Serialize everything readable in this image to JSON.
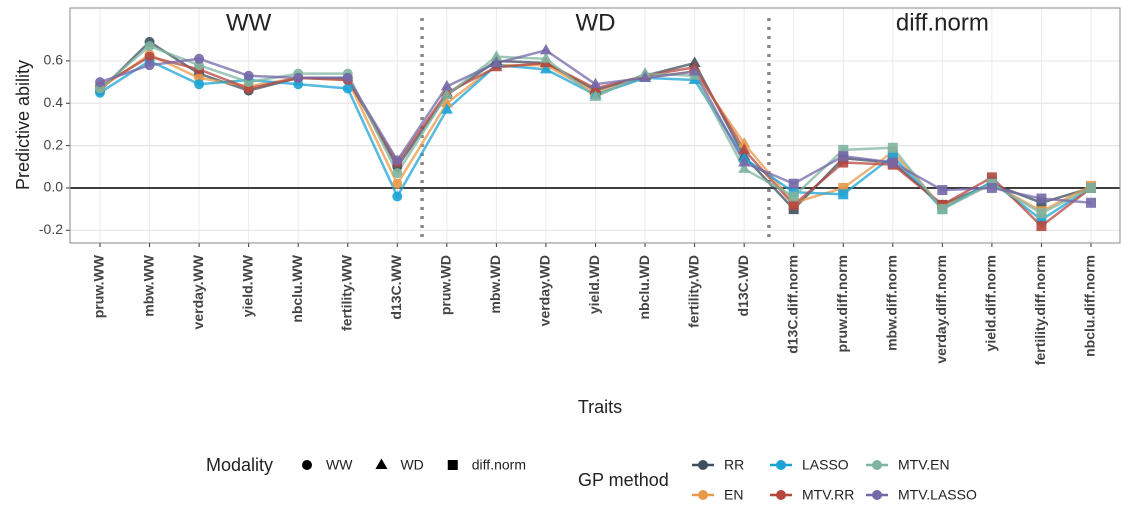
{
  "chart_data": {
    "type": "line",
    "xlabel": "Traits",
    "ylabel": "Predictive ability",
    "categories": [
      "pruw.WW",
      "mbw.WW",
      "verday.WW",
      "yield.WW",
      "nbclu.WW",
      "fertility.WW",
      "d13C.WW",
      "pruw.WD",
      "mbw.WD",
      "verday.WD",
      "yield.WD",
      "nbclu.WD",
      "fertility.WD",
      "d13C.WD",
      "d13C.diff.norm",
      "pruw.diff.norm",
      "mbw.diff.norm",
      "verday.diff.norm",
      "yield.diff.norm",
      "fertility.diff.norm",
      "nbclu.diff.norm"
    ],
    "modality": {
      "title": "Modality",
      "levels": [
        "WW",
        "WD",
        "diff.norm"
      ],
      "shapes": [
        "circle",
        "triangle",
        "square"
      ]
    },
    "legend_title": "GP method",
    "series": [
      {
        "name": "RR",
        "color": "#3e4f5d",
        "values": [
          0.46,
          0.69,
          0.54,
          0.46,
          0.52,
          0.52,
          0.1,
          0.44,
          0.6,
          0.59,
          0.46,
          0.53,
          0.59,
          0.15,
          -0.1,
          0.14,
          0.12,
          -0.08,
          0.02,
          -0.07,
          0.0
        ]
      },
      {
        "name": "EN",
        "color": "#e8994a",
        "values": [
          0.47,
          0.63,
          0.52,
          0.48,
          0.52,
          0.51,
          0.02,
          0.4,
          0.58,
          0.58,
          0.45,
          0.52,
          0.55,
          0.21,
          -0.07,
          0.0,
          0.17,
          -0.09,
          0.02,
          -0.11,
          0.01
        ]
      },
      {
        "name": "LASSO",
        "color": "#1ba3d6",
        "values": [
          0.45,
          0.6,
          0.49,
          0.51,
          0.49,
          0.47,
          -0.04,
          0.37,
          0.58,
          0.56,
          0.44,
          0.52,
          0.51,
          0.14,
          -0.02,
          -0.03,
          0.15,
          -0.1,
          0.03,
          -0.15,
          0.0
        ]
      },
      {
        "name": "MTV.RR",
        "color": "#b5473f",
        "values": [
          0.48,
          0.62,
          0.56,
          0.47,
          0.52,
          0.51,
          0.12,
          0.45,
          0.57,
          0.59,
          0.47,
          0.53,
          0.57,
          0.18,
          -0.08,
          0.12,
          0.11,
          -0.08,
          0.05,
          -0.18,
          0.0
        ]
      },
      {
        "name": "MTV.EN",
        "color": "#7fb5a0",
        "values": [
          0.47,
          0.67,
          0.58,
          0.5,
          0.54,
          0.54,
          0.07,
          0.44,
          0.62,
          0.61,
          0.43,
          0.54,
          0.53,
          0.09,
          -0.04,
          0.18,
          0.19,
          -0.1,
          0.02,
          -0.12,
          0.0
        ]
      },
      {
        "name": "MTV.LASSO",
        "color": "#7468a8",
        "values": [
          0.5,
          0.58,
          0.61,
          0.53,
          0.52,
          0.52,
          0.13,
          0.48,
          0.59,
          0.65,
          0.49,
          0.52,
          0.55,
          0.12,
          0.02,
          0.15,
          0.12,
          -0.01,
          0.0,
          -0.05,
          -0.07
        ]
      }
    ],
    "ylim": [
      -0.26,
      0.85
    ],
    "yticks": [
      -0.2,
      {
        "value": 0,
        "label": "0.0"
      },
      0.2,
      0.4,
      0.6
    ],
    "hline": 0,
    "grid": true
  }
}
